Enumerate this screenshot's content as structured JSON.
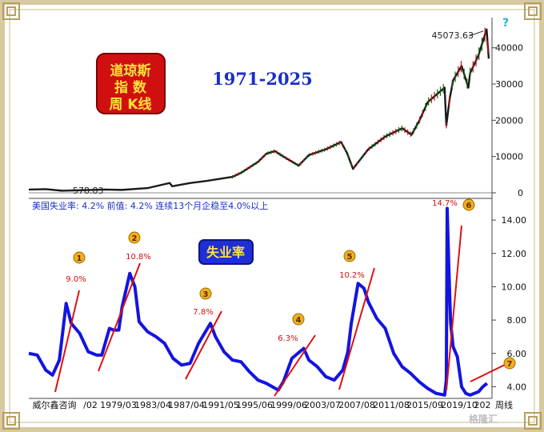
{
  "chart_data": [
    {
      "type": "line",
      "subtype": "weekly-candlestick",
      "title_box": [
        "道琼斯",
        "指  数",
        "周 K线"
      ],
      "period_label": "1971-2025",
      "ylim": [
        0,
        47000
      ],
      "y_ticks": [
        "0",
        "10000",
        "20000",
        "30000",
        "40000"
      ],
      "y_tick_values": [
        0,
        10000,
        20000,
        30000,
        40000
      ],
      "annotations": [
        {
          "text": "45073.63",
          "x": 2024.95,
          "y": 45073.63
        },
        {
          "text": "578.83",
          "x": 1974.9,
          "y": 578.83
        }
      ],
      "series": [
        {
          "x": [
            1971,
            1973,
            1974.9,
            1980,
            1982,
            1985,
            1987.6,
            1987.9,
            1990,
            1992,
            1995,
            1996,
            1998,
            1999,
            2000,
            2001,
            2002.8,
            2004,
            2006,
            2007.8,
            2008.5,
            2009.2,
            2011,
            2013,
            2015,
            2016.1,
            2017,
            2018,
            2019,
            2020.0,
            2020.2,
            2020.6,
            2021,
            2022,
            2022.8,
            2023,
            2024,
            2024.95,
            2025.2
          ],
          "values": [
            900,
            1000,
            578.83,
            900,
            800,
            1300,
            2700,
            1800,
            2700,
            3300,
            4400,
            5500,
            8500,
            10800,
            11500,
            10000,
            7500,
            10400,
            12000,
            14000,
            11000,
            6600,
            12000,
            15500,
            17800,
            16000,
            19800,
            25000,
            27000,
            29000,
            18600,
            26000,
            31000,
            35000,
            29000,
            33000,
            38000,
            45073.63,
            37000
          ]
        }
      ]
    },
    {
      "type": "line",
      "title_box": "失业率",
      "info_line": "美国失业率: 4.2%   前值: 4.2%   连续13个月企稳至4.0%以上",
      "ylim": [
        3.3,
        15.3
      ],
      "y_ticks": [
        "4.00",
        "6.00",
        "8.00",
        "10.00",
        "12.00",
        "14.00"
      ],
      "y_tick_values": [
        4,
        6,
        8,
        10,
        12,
        14
      ],
      "x_tick_labels": [
        "威尔鑫咨询",
        "/02",
        "1979/03",
        "1983/04",
        "1987/04",
        "1991/05",
        "1995/06",
        "1999/06",
        "2003/07",
        "2007/08",
        "2011/08",
        "2015/09",
        "2019/10",
        "202",
        "周线"
      ],
      "markers": [
        {
          "id": "1",
          "label": "9.0%"
        },
        {
          "id": "2",
          "label": "10.8%"
        },
        {
          "id": "3",
          "label": "7.8%"
        },
        {
          "id": "4",
          "label": "6.3%"
        },
        {
          "id": "5",
          "label": "10.2%"
        },
        {
          "id": "6",
          "label": "14.7%"
        },
        {
          "id": "7",
          "label": ""
        }
      ],
      "series": [
        {
          "x": [
            1971.0,
            1972.0,
            1973.0,
            1973.8,
            1974.6,
            1975.4,
            1976.0,
            1977.0,
            1978.0,
            1979.0,
            1979.6,
            1980.5,
            1981.0,
            1981.6,
            1982.0,
            1982.9,
            1983.5,
            1984.0,
            1985.0,
            1986.0,
            1987.0,
            1988.0,
            1989.0,
            1990.0,
            1991.0,
            1992.4,
            1993.0,
            1994.0,
            1995.0,
            1996.0,
            1997.0,
            1998.0,
            1999.0,
            2000.4,
            2001.0,
            2002.0,
            2003.4,
            2004.0,
            2005.0,
            2006.0,
            2007.0,
            2008.0,
            2008.6,
            2009.0,
            2009.8,
            2010.5,
            2011.0,
            2012.0,
            2013.0,
            2014.0,
            2015.0,
            2016.0,
            2017.0,
            2018.0,
            2019.0,
            2020.0,
            2020.2,
            2020.3,
            2020.5,
            2020.7,
            2021.0,
            2021.5,
            2022.0,
            2022.5,
            2023.0,
            2023.5,
            2024.0,
            2024.5,
            2025.0
          ],
          "values": [
            6.0,
            5.9,
            5.0,
            4.7,
            5.6,
            9.0,
            7.8,
            7.2,
            6.1,
            5.9,
            5.9,
            7.5,
            7.4,
            7.4,
            8.8,
            10.8,
            10.0,
            7.9,
            7.3,
            7.0,
            6.6,
            5.7,
            5.3,
            5.4,
            6.6,
            7.8,
            7.0,
            6.1,
            5.6,
            5.5,
            4.9,
            4.4,
            4.2,
            3.8,
            4.3,
            5.7,
            6.3,
            5.6,
            5.2,
            4.6,
            4.4,
            5.0,
            6.1,
            7.8,
            10.2,
            9.9,
            9.1,
            8.1,
            7.5,
            6.0,
            5.2,
            4.8,
            4.3,
            3.9,
            3.6,
            3.5,
            4.4,
            14.7,
            11.1,
            7.9,
            6.4,
            5.8,
            4.0,
            3.6,
            3.5,
            3.6,
            3.7,
            4.0,
            4.2
          ]
        }
      ]
    }
  ],
  "watermark": "格隆汇"
}
